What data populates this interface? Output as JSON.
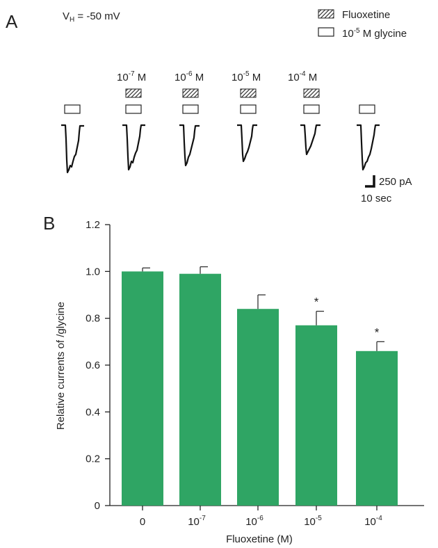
{
  "panel_a": {
    "label": "A",
    "holding": {
      "prefix": "V",
      "sub": "H",
      "text": " = -50 mV"
    },
    "legend": [
      {
        "name": "Fluoxetine",
        "swatch": "hatched"
      },
      {
        "name": "10",
        "sup": "-5",
        "rest": " M glycine",
        "swatch": "open"
      }
    ],
    "concentrations": [
      {
        "base": "10",
        "exp": "-7",
        "unit": " M"
      },
      {
        "base": "10",
        "exp": "-6",
        "unit": " M"
      },
      {
        "base": "10",
        "exp": "-5",
        "unit": " M"
      },
      {
        "base": "10",
        "exp": "-4",
        "unit": " M"
      }
    ],
    "scale_bar": {
      "current": "250 pA",
      "time": "10 sec"
    }
  },
  "chart_data": {
    "type": "bar",
    "panel_label": "B",
    "categories": [
      {
        "base": "0",
        "exp": ""
      },
      {
        "base": "10",
        "exp": "-7"
      },
      {
        "base": "10",
        "exp": "-6"
      },
      {
        "base": "10",
        "exp": "-5"
      },
      {
        "base": "10",
        "exp": "-4"
      }
    ],
    "values": [
      1.0,
      0.99,
      0.84,
      0.77,
      0.66
    ],
    "errors": [
      0.015,
      0.03,
      0.06,
      0.06,
      0.04
    ],
    "significance": [
      "",
      "",
      "",
      "*",
      "*"
    ],
    "xlabel": "Fluoxetine (M)",
    "ylabel": "Relative currents of /glycine",
    "ylim": [
      0,
      1.2
    ],
    "yticks": [
      "0",
      "0.2",
      "0.4",
      "0.6",
      "0.8",
      "1.0",
      "1.2"
    ],
    "bar_color": "#2fa564"
  }
}
